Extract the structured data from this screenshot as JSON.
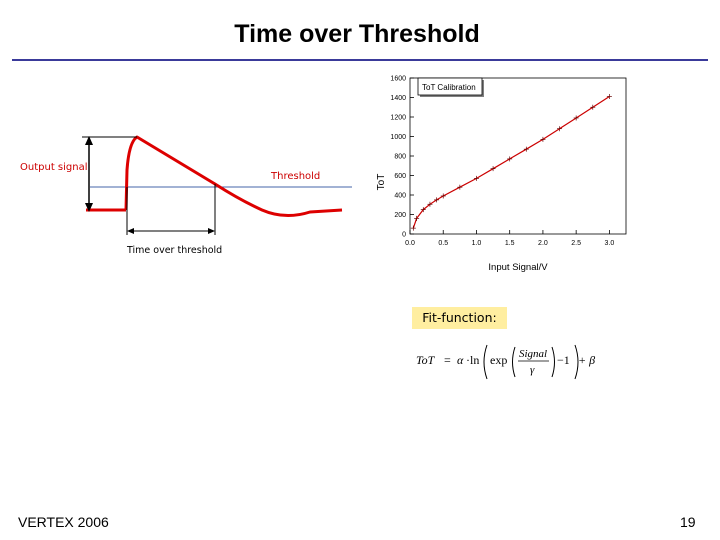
{
  "slide": {
    "title": "Time over Threshold",
    "footer_left": "VERTEX 2006",
    "page_number": "19",
    "rule_color": "#3a3a9a"
  },
  "pulse_diagram": {
    "output_label": "Output signal",
    "threshold_label": "Threshold",
    "tot_label": "Time over threshold",
    "pulse_color": "#dd0000",
    "threshold_color": "#4466aa"
  },
  "fit": {
    "label": "Fit-function:",
    "box_color": "#ffeea0",
    "formula": {
      "lhs": "ToT",
      "eq": "=",
      "alpha": "α",
      "dot": "·",
      "ln": "ln",
      "exp": "exp",
      "num": "Signal",
      "den": "γ",
      "minus_one": "−1",
      "plus_beta": "+ β"
    }
  },
  "chart_data": {
    "type": "line",
    "legend": "ToT Calibration",
    "legend_placement": "top-left",
    "ylabel": "ToT",
    "xlabel": "Input Signal/V",
    "xlim": [
      0.0,
      3.25
    ],
    "ylim": [
      0,
      1600
    ],
    "xticks": [
      "0.0",
      "0.5",
      "1.0",
      "1.5",
      "2.0",
      "2.5",
      "3.0"
    ],
    "yticks": [
      "0",
      "200",
      "400",
      "600",
      "800",
      "1000",
      "1200",
      "1400",
      "1600"
    ],
    "grid": false,
    "series": [
      {
        "x": [
          0.05,
          0.1,
          0.2,
          0.3,
          0.4,
          0.5,
          0.75,
          1.0,
          1.25,
          1.5,
          1.75,
          2.0,
          2.25,
          2.5,
          2.75,
          3.0
        ],
        "y": [
          60,
          160,
          250,
          305,
          350,
          390,
          480,
          570,
          670,
          770,
          870,
          970,
          1080,
          1190,
          1300,
          1410
        ],
        "color": "#cc0000"
      }
    ]
  }
}
